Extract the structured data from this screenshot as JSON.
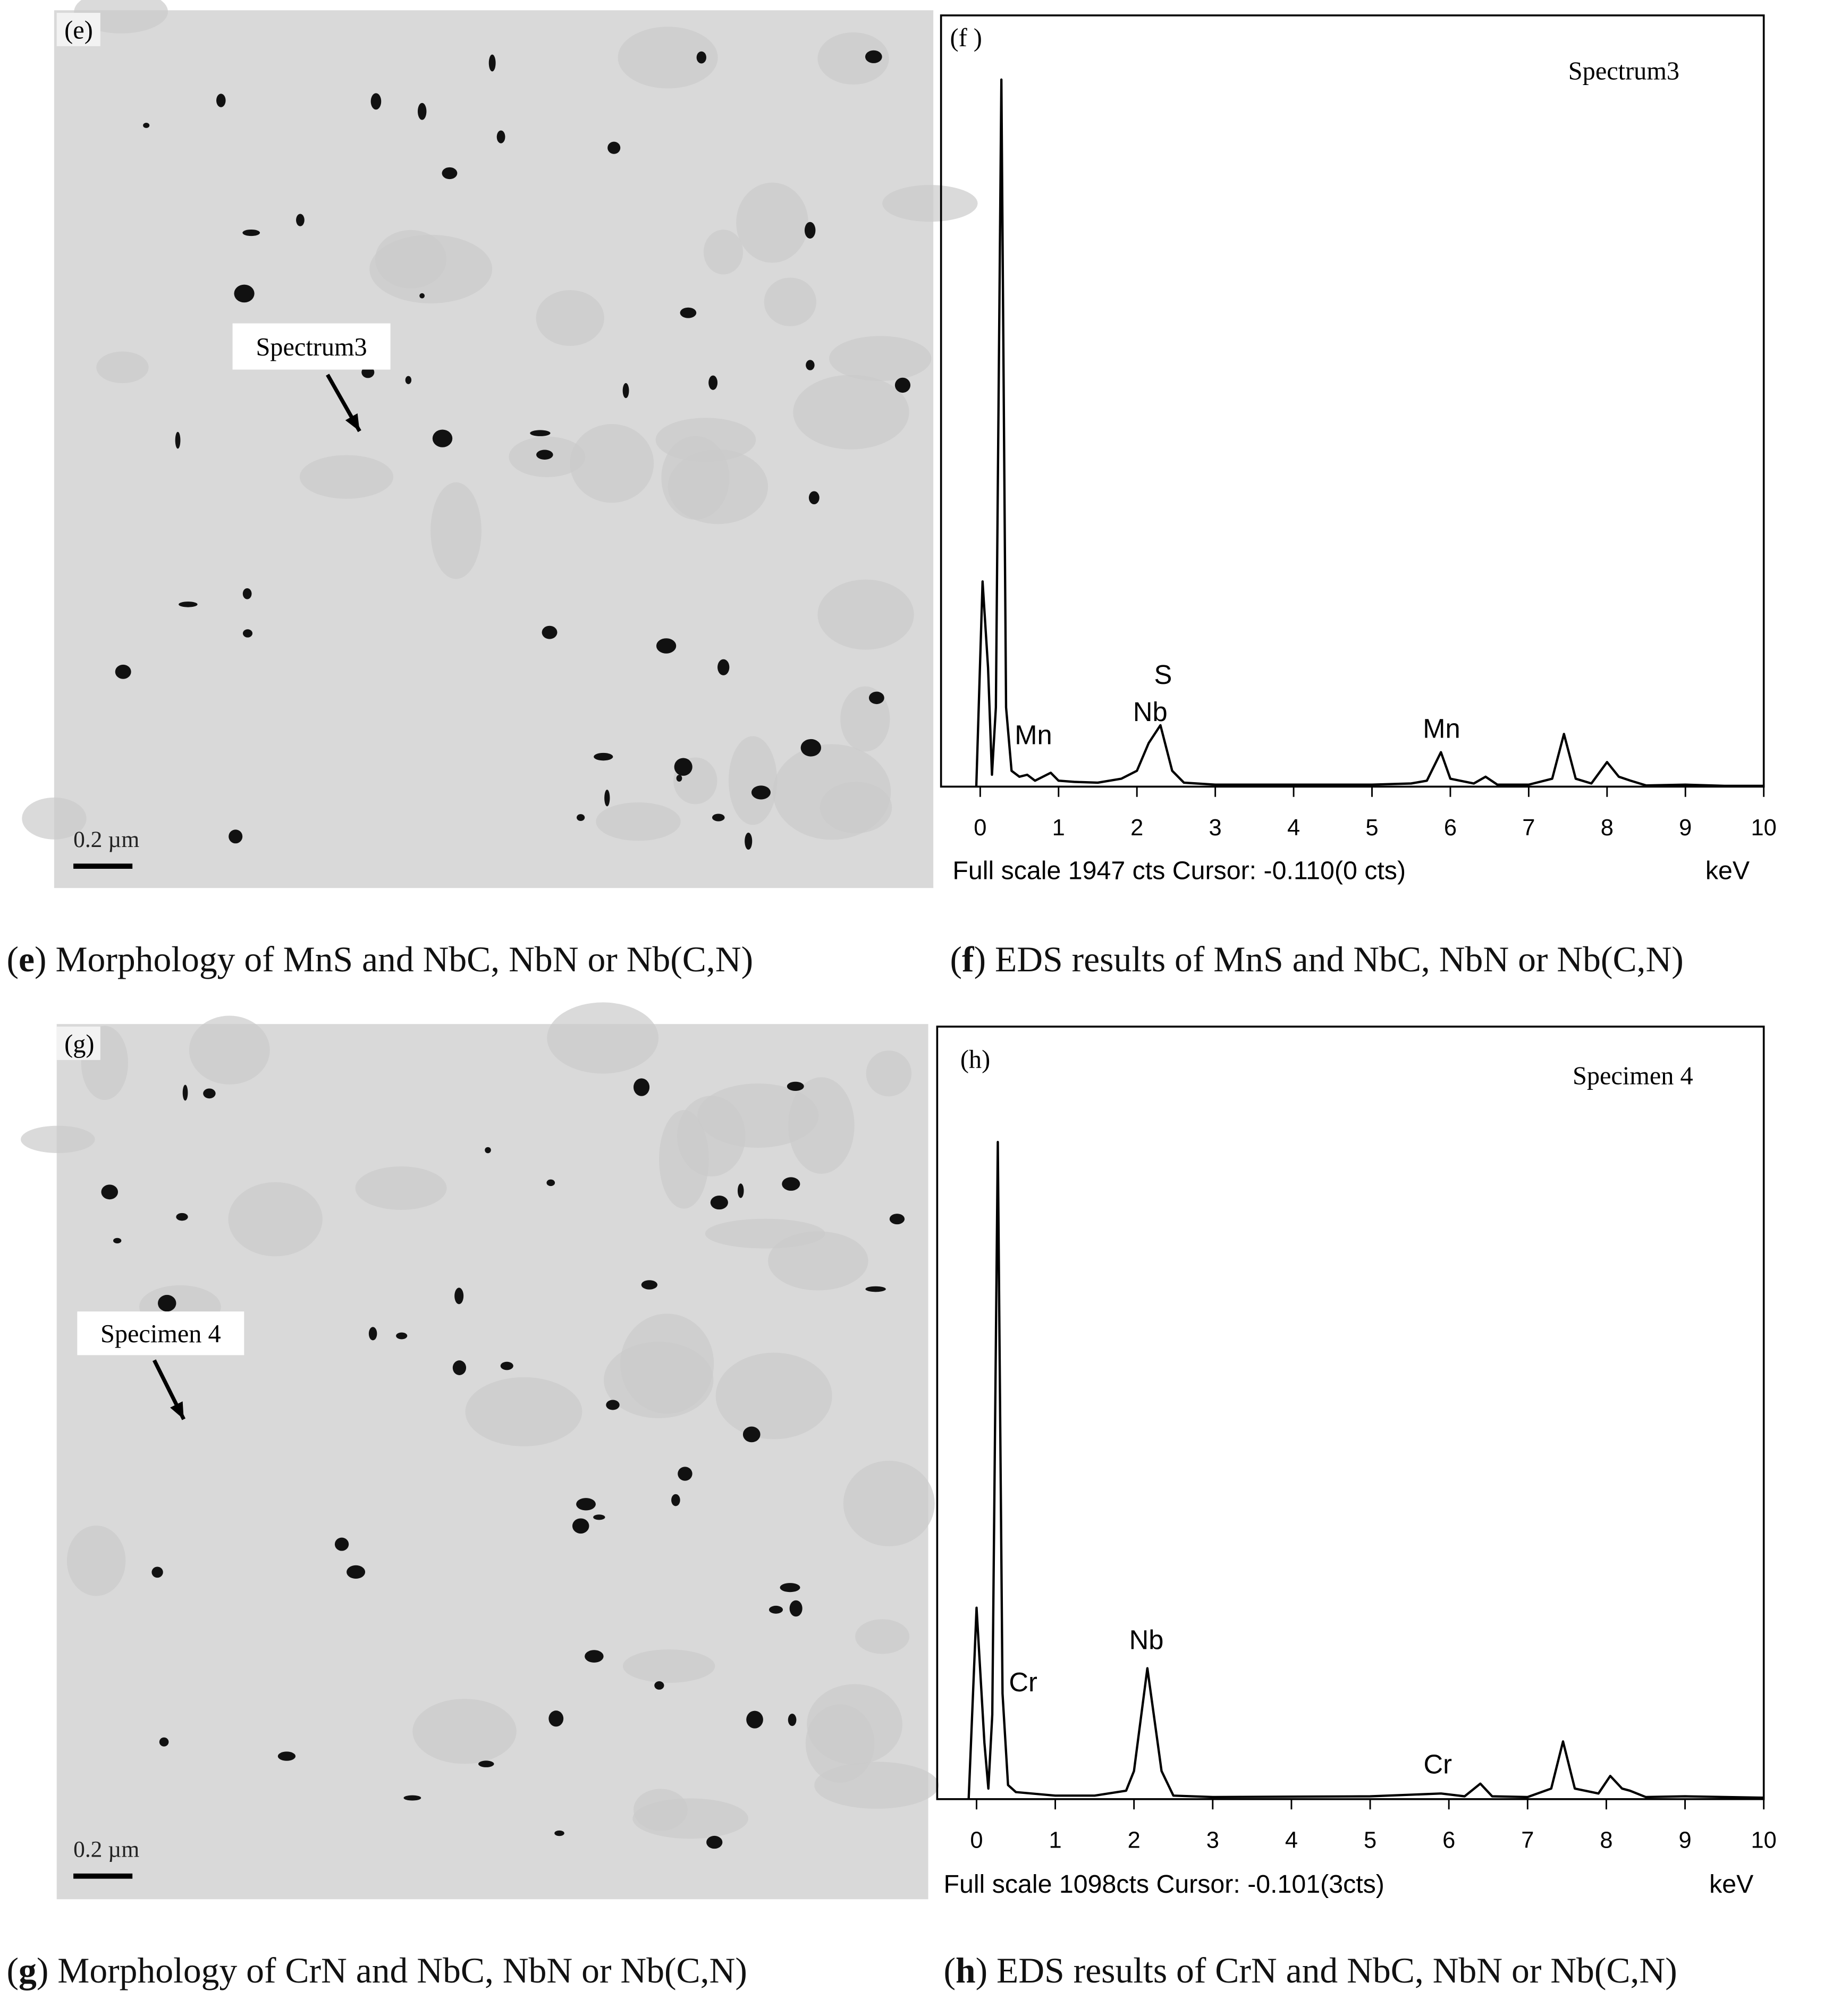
{
  "micrographs": [
    {
      "label": "(e)",
      "marker": "Spectrum3",
      "scale": "0.2 µm",
      "caption": [
        "(",
        "e",
        ") Morphology of MnS and NbC, NbN or Nb(C,N)"
      ]
    },
    {
      "label": "(g)",
      "marker": "Specimen 4",
      "scale": "0.2 µm",
      "caption": [
        "(",
        "g",
        ") Morphology of CrN and NbC, NbN or Nb(C,N)"
      ]
    }
  ],
  "chart_data": [
    {
      "type": "line",
      "panel_label": "(f )",
      "title": "Spectrum3",
      "color": "#000000",
      "x": [
        -0.05,
        0.03,
        0.1,
        0.15,
        0.2,
        0.27,
        0.33,
        0.4,
        0.5,
        0.6,
        0.7,
        0.9,
        1.0,
        1.2,
        1.5,
        1.8,
        2.0,
        2.15,
        2.3,
        2.45,
        2.6,
        3,
        4,
        5,
        5.5,
        5.7,
        5.88,
        6.0,
        6.3,
        6.45,
        6.6,
        7,
        7.3,
        7.45,
        7.6,
        7.8,
        8.0,
        8.15,
        8.3,
        8.5,
        9,
        9.5,
        10
      ],
      "values": [
        0,
        518,
        300,
        30,
        200,
        1785,
        200,
        40,
        25,
        30,
        15,
        35,
        15,
        12,
        10,
        20,
        40,
        110,
        155,
        40,
        10,
        5,
        5,
        5,
        8,
        15,
        87,
        20,
        8,
        25,
        5,
        5,
        20,
        133,
        20,
        8,
        62,
        25,
        15,
        3,
        5,
        2,
        2
      ],
      "xlim": [
        -0.5,
        10
      ],
      "xticks": [
        0,
        1,
        2,
        3,
        4,
        5,
        6,
        7,
        8,
        9,
        10
      ],
      "ylim": [
        0,
        1947
      ],
      "annotations": [
        "Mn",
        "S",
        "Nb",
        "Mn"
      ],
      "footer": "Full scale 1947 cts  Cursor: -0.110(0 cts)",
      "x_unit": "keV",
      "caption": [
        "(",
        "f",
        ") EDS results of MnS and NbC, NbN or Nb(C,N)"
      ]
    },
    {
      "type": "line",
      "panel_label": "(h)",
      "title": "Specimen 4",
      "color": "#000000",
      "x": [
        -0.1,
        0,
        0.1,
        0.15,
        0.2,
        0.27,
        0.33,
        0.4,
        0.5,
        1,
        1.5,
        1.9,
        2.0,
        2.17,
        2.35,
        2.5,
        3,
        5,
        5.9,
        6.2,
        6.4,
        6.55,
        7,
        7.3,
        7.45,
        7.6,
        7.9,
        8.05,
        8.2,
        8.3,
        8.5,
        9,
        10
      ],
      "values": [
        0,
        272,
        80,
        15,
        120,
        934,
        150,
        20,
        10,
        5,
        5,
        12,
        40,
        186,
        40,
        5,
        3,
        4,
        8,
        4,
        22,
        4,
        3,
        15,
        82,
        15,
        8,
        33,
        15,
        12,
        3,
        4,
        2
      ],
      "xlim": [
        -0.5,
        10
      ],
      "xticks": [
        0,
        1,
        2,
        3,
        4,
        5,
        6,
        7,
        8,
        9,
        10
      ],
      "ylim": [
        0,
        1098
      ],
      "annotations": [
        "Cr",
        "Nb",
        "Cr"
      ],
      "footer": "Full scale 1098cts  Cursor: -0.101(3cts)",
      "x_unit": "keV",
      "caption": [
        "(",
        "h",
        ") EDS results of CrN and NbC, NbN or Nb(C,N)"
      ]
    }
  ]
}
